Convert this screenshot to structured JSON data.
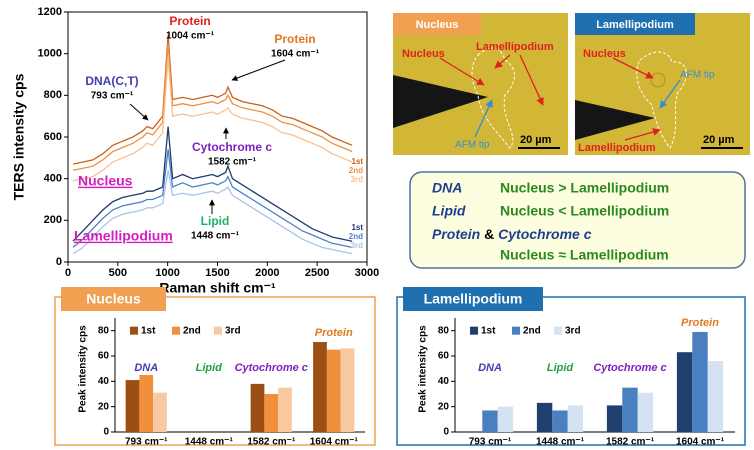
{
  "chart_data": [
    {
      "type": "line",
      "x_label": "Raman shift  cm⁻¹",
      "y_label": "TERS intensity  cps",
      "xlim": [
        0,
        3000
      ],
      "xticks": [
        0,
        500,
        1000,
        1500,
        2000,
        2500,
        3000
      ],
      "ylim": [
        0,
        1200
      ],
      "yticks": [
        0,
        200,
        400,
        600,
        800,
        1000,
        1200
      ],
      "x": [
        50,
        150,
        250,
        350,
        450,
        550,
        650,
        750,
        793,
        850,
        950,
        1004,
        1050,
        1150,
        1250,
        1350,
        1448,
        1500,
        1582,
        1604,
        1650,
        1750,
        1850,
        1950,
        2050,
        2150,
        2250,
        2350,
        2450,
        2550,
        2650,
        2750,
        2850
      ],
      "groups": [
        "Nucleus",
        "Lamellipodium"
      ],
      "series": [
        {
          "name": "1st",
          "group": 0,
          "color": "#c8601a",
          "values": [
            470,
            480,
            490,
            520,
            560,
            580,
            600,
            630,
            650,
            640,
            700,
            1090,
            780,
            790,
            780,
            790,
            800,
            790,
            810,
            840,
            790,
            770,
            760,
            750,
            730,
            700,
            690,
            670,
            650,
            630,
            600,
            580,
            560
          ]
        },
        {
          "name": "2nd",
          "group": 0,
          "color": "#f09040",
          "values": [
            440,
            450,
            460,
            490,
            530,
            550,
            570,
            600,
            620,
            610,
            670,
            1050,
            750,
            760,
            750,
            760,
            770,
            760,
            780,
            800,
            760,
            740,
            730,
            720,
            700,
            670,
            660,
            640,
            620,
            600,
            570,
            550,
            530
          ]
        },
        {
          "name": "3rd",
          "group": 0,
          "color": "#f8c090",
          "values": [
            390,
            400,
            410,
            440,
            480,
            500,
            520,
            550,
            570,
            560,
            620,
            980,
            700,
            710,
            700,
            710,
            720,
            710,
            730,
            740,
            710,
            690,
            680,
            670,
            650,
            620,
            610,
            590,
            570,
            550,
            520,
            500,
            480
          ]
        },
        {
          "name": "1st",
          "group": 1,
          "color": "#1f3a6e",
          "values": [
            100,
            150,
            200,
            250,
            290,
            310,
            320,
            330,
            340,
            340,
            360,
            650,
            400,
            420,
            400,
            410,
            420,
            410,
            430,
            460,
            400,
            370,
            340,
            310,
            280,
            250,
            220,
            190,
            160,
            140,
            120,
            110,
            100
          ]
        },
        {
          "name": "2nd",
          "group": 1,
          "color": "#4a80c8",
          "values": [
            70,
            110,
            160,
            210,
            250,
            270,
            280,
            290,
            300,
            300,
            320,
            540,
            360,
            380,
            360,
            370,
            380,
            370,
            390,
            410,
            360,
            330,
            300,
            270,
            240,
            210,
            180,
            150,
            130,
            110,
            90,
            80,
            70
          ]
        },
        {
          "name": "3rd",
          "group": 1,
          "color": "#a8c4e8",
          "values": [
            40,
            70,
            120,
            170,
            210,
            230,
            240,
            250,
            260,
            260,
            280,
            440,
            320,
            330,
            320,
            330,
            340,
            330,
            350,
            360,
            320,
            290,
            260,
            230,
            200,
            170,
            140,
            110,
            90,
            70,
            60,
            50,
            40
          ]
        }
      ],
      "annotations": [
        {
          "lines": [
            "Protein",
            "1004 cm⁻¹"
          ],
          "color": "#e02020"
        },
        {
          "lines": [
            "Protein",
            "1604 cm⁻¹"
          ],
          "color": "#e07820"
        },
        {
          "lines": [
            "DNA(C,T)",
            "793 cm⁻¹"
          ],
          "color": "#4040b0"
        },
        {
          "lines": [
            "Cytochrome c",
            "1582 cm⁻¹"
          ],
          "color": "#8020c0"
        },
        {
          "lines": [
            "Lipid",
            "1448 cm⁻¹"
          ],
          "color": "#20b060"
        }
      ]
    },
    {
      "type": "bar",
      "title": "Nucleus",
      "y_label": "Peak intensity  cps",
      "categories": [
        "793 cm⁻¹",
        "1448 cm⁻¹",
        "1582 cm⁻¹",
        "1604 cm⁻¹"
      ],
      "group_labels": [
        "DNA",
        "Lipid",
        "Cytochrome c",
        "Protein"
      ],
      "group_label_colors": [
        "#4040b0",
        "#20a040",
        "#8020c0",
        "#e07820"
      ],
      "ylim": [
        0,
        90
      ],
      "yticks": [
        0,
        20,
        40,
        60,
        80
      ],
      "series": [
        {
          "name": "1st",
          "color": "#9c4f14",
          "values": [
            41,
            null,
            38,
            71
          ]
        },
        {
          "name": "2nd",
          "color": "#f0903a",
          "values": [
            45,
            null,
            30,
            65
          ]
        },
        {
          "name": "3rd",
          "color": "#f8c9a0",
          "values": [
            31,
            null,
            35,
            66
          ]
        }
      ]
    },
    {
      "type": "bar",
      "title": "Lamellipodium",
      "y_label": "Peak intensity  cps",
      "categories": [
        "793 cm⁻¹",
        "1448 cm⁻¹",
        "1582 cm⁻¹",
        "1604 cm⁻¹"
      ],
      "group_labels": [
        "DNA",
        "Lipid",
        "Cytochrome c",
        "Protein"
      ],
      "group_label_colors": [
        "#4040b0",
        "#20a040",
        "#8020c0",
        "#e07820"
      ],
      "ylim": [
        0,
        90
      ],
      "yticks": [
        0,
        20,
        40,
        60,
        80
      ],
      "series": [
        {
          "name": "1st",
          "color": "#1f3f6e",
          "values": [
            null,
            23,
            21,
            63
          ]
        },
        {
          "name": "2nd",
          "color": "#4a7fc0",
          "values": [
            17,
            17,
            35,
            79
          ]
        },
        {
          "name": "3rd",
          "color": "#d5e2f2",
          "values": [
            20,
            21,
            31,
            56
          ]
        }
      ]
    }
  ],
  "images": [
    {
      "title": "Nucleus",
      "labels": [
        "Nucleus",
        "Lamellipodium",
        "AFM tip"
      ],
      "scale": "20 µm"
    },
    {
      "title": "Lamellipodium",
      "labels": [
        "Nucleus",
        "AFM tip",
        "Lamellipodium"
      ],
      "scale": "20 µm"
    }
  ],
  "summary": {
    "rows": [
      {
        "subject": "DNA",
        "relation": "Nucleus > Lamellipodium"
      },
      {
        "subject": "Lipid",
        "relation": "Nucleus < Lamellipodium"
      },
      {
        "subject": "Protein",
        "joiner": "&",
        "subject2": "Cytochrome c",
        "relation": "Nucleus ≈ Lamellipodium"
      }
    ]
  }
}
